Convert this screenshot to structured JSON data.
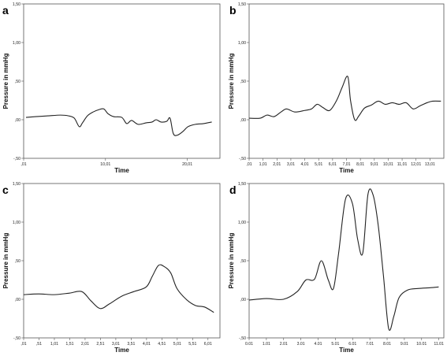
{
  "chart_data": [
    {
      "type": "line",
      "panel": "a",
      "xlabel": "Time",
      "ylabel": "Pressure in mmHg",
      "ylim": [
        -0.5,
        1.5
      ],
      "xlim": [
        0.01,
        24
      ],
      "grid": false,
      "x_ticks": [
        {
          "value": 0.01,
          "label": ",01"
        },
        {
          "value": 10.01,
          "label": "10,01"
        },
        {
          "value": 20.01,
          "label": "20,01"
        }
      ],
      "y_ticks": [
        {
          "value": -0.5,
          "label": "-,50"
        },
        {
          "value": 0,
          "label": ",00"
        },
        {
          "value": 0.5,
          "label": ",50"
        },
        {
          "value": 1.0,
          "label": "1,00"
        },
        {
          "value": 1.5,
          "label": "1,50"
        }
      ],
      "x": [
        0.3,
        1.5,
        3,
        4.5,
        5.5,
        6.2,
        6.8,
        7.2,
        7.8,
        8.5,
        9.2,
        9.8,
        10.3,
        11,
        12,
        12.6,
        13.2,
        14,
        15,
        15.7,
        16.2,
        16.8,
        17.5,
        17.9,
        18.3,
        18.8,
        19.5,
        20.1,
        21,
        22,
        23
      ],
      "y": [
        0.03,
        0.04,
        0.05,
        0.06,
        0.05,
        0.02,
        -0.09,
        -0.04,
        0.05,
        0.1,
        0.13,
        0.14,
        0.08,
        0.04,
        0.03,
        -0.05,
        -0.01,
        -0.06,
        -0.04,
        -0.03,
        0.0,
        -0.03,
        -0.02,
        0.02,
        -0.18,
        -0.2,
        -0.15,
        -0.09,
        -0.06,
        -0.05,
        -0.03
      ]
    },
    {
      "type": "line",
      "panel": "b",
      "xlabel": "Time",
      "ylabel": "Pressure in mmHg",
      "ylim": [
        -0.5,
        1.5
      ],
      "xlim": [
        0.01,
        14.01
      ],
      "grid": false,
      "x_ticks": [
        {
          "value": 0.01,
          "label": ",01"
        },
        {
          "value": 1.01,
          "label": "1,01"
        },
        {
          "value": 2.01,
          "label": "2,01"
        },
        {
          "value": 3.01,
          "label": "3,01"
        },
        {
          "value": 4.01,
          "label": "4,01"
        },
        {
          "value": 5.01,
          "label": "5,01"
        },
        {
          "value": 6.01,
          "label": "6,01"
        },
        {
          "value": 7.01,
          "label": "7,01"
        },
        {
          "value": 8.01,
          "label": "8,01"
        },
        {
          "value": 9.01,
          "label": "9,01"
        },
        {
          "value": 10.01,
          "label": "10,01"
        },
        {
          "value": 11.01,
          "label": "11,01"
        },
        {
          "value": 12.01,
          "label": "12,01"
        },
        {
          "value": 13.01,
          "label": "13,01"
        }
      ],
      "y_ticks": [
        {
          "value": -0.5,
          "label": "-,50"
        },
        {
          "value": 0,
          "label": ",00"
        },
        {
          "value": 0.5,
          "label": ",50"
        },
        {
          "value": 1.0,
          "label": "1,00"
        },
        {
          "value": 1.5,
          "label": "1,50"
        }
      ],
      "x": [
        0.01,
        0.8,
        1.3,
        1.8,
        2.3,
        2.7,
        3.3,
        4.0,
        4.5,
        4.9,
        5.3,
        5.8,
        6.3,
        6.7,
        7.1,
        7.3,
        7.6,
        7.9,
        8.3,
        8.8,
        9.3,
        9.8,
        10.3,
        10.8,
        11.3,
        11.8,
        12.3,
        12.8,
        13.2,
        13.8
      ],
      "y": [
        0.02,
        0.02,
        0.06,
        0.04,
        0.1,
        0.14,
        0.1,
        0.12,
        0.14,
        0.2,
        0.16,
        0.12,
        0.25,
        0.42,
        0.56,
        0.25,
        0.0,
        0.05,
        0.15,
        0.19,
        0.24,
        0.2,
        0.22,
        0.2,
        0.22,
        0.14,
        0.18,
        0.22,
        0.24,
        0.24
      ]
    },
    {
      "type": "line",
      "panel": "c",
      "xlabel": "Time",
      "ylabel": "Pressure in mmHg",
      "ylim": [
        -0.5,
        1.5
      ],
      "xlim": [
        0.01,
        6.4
      ],
      "grid": false,
      "x_ticks": [
        {
          "value": 0.01,
          "label": ",01"
        },
        {
          "value": 0.51,
          "label": ",51"
        },
        {
          "value": 1.01,
          "label": "1,01"
        },
        {
          "value": 1.51,
          "label": "1,51"
        },
        {
          "value": 2.01,
          "label": "2,01"
        },
        {
          "value": 2.51,
          "label": "2,51"
        },
        {
          "value": 3.01,
          "label": "3,01"
        },
        {
          "value": 3.51,
          "label": "3,51"
        },
        {
          "value": 4.01,
          "label": "4,01"
        },
        {
          "value": 4.51,
          "label": "4,51"
        },
        {
          "value": 5.01,
          "label": "5,01"
        },
        {
          "value": 5.51,
          "label": "5,51"
        },
        {
          "value": 6.01,
          "label": "6,01"
        }
      ],
      "y_ticks": [
        {
          "value": -0.5,
          "label": "-,50"
        },
        {
          "value": 0,
          "label": ",00"
        },
        {
          "value": 0.5,
          "label": ",50"
        },
        {
          "value": 1.0,
          "label": "1,00"
        },
        {
          "value": 1.5,
          "label": "1,50"
        }
      ],
      "x": [
        0.01,
        0.5,
        1.0,
        1.5,
        1.9,
        2.2,
        2.5,
        2.8,
        3.2,
        3.6,
        4.0,
        4.2,
        4.4,
        4.6,
        4.8,
        5.0,
        5.3,
        5.6,
        5.9,
        6.2
      ],
      "y": [
        0.06,
        0.07,
        0.06,
        0.08,
        0.1,
        -0.02,
        -0.12,
        -0.06,
        0.04,
        0.1,
        0.16,
        0.3,
        0.44,
        0.42,
        0.34,
        0.14,
        0.0,
        -0.08,
        -0.1,
        -0.17
      ]
    },
    {
      "type": "line",
      "panel": "d",
      "xlabel": "Time",
      "ylabel": "Pressure in mmHg",
      "ylim": [
        -0.5,
        1.5
      ],
      "xlim": [
        0.01,
        11.3
      ],
      "grid": false,
      "x_ticks": [
        {
          "value": 0.01,
          "label": "0.01"
        },
        {
          "value": 1.01,
          "label": "1.01"
        },
        {
          "value": 2.01,
          "label": "2.01"
        },
        {
          "value": 3.01,
          "label": "3.01"
        },
        {
          "value": 4.01,
          "label": "4.01"
        },
        {
          "value": 5.01,
          "label": "5.01"
        },
        {
          "value": 6.01,
          "label": "6.01"
        },
        {
          "value": 7.01,
          "label": "7.01"
        },
        {
          "value": 8.01,
          "label": "8.01"
        },
        {
          "value": 9.01,
          "label": "9.01"
        },
        {
          "value": 10.01,
          "label": "10.01"
        },
        {
          "value": 11.01,
          "label": "11.01"
        }
      ],
      "y_ticks": [
        {
          "value": -0.5,
          "label": "-,50"
        },
        {
          "value": 0,
          "label": ",00"
        },
        {
          "value": 0.5,
          "label": ",50"
        },
        {
          "value": 1.0,
          "label": "1,00"
        },
        {
          "value": 1.5,
          "label": "1,50"
        }
      ],
      "x": [
        0.01,
        1.0,
        2.0,
        2.8,
        3.3,
        3.8,
        4.2,
        4.6,
        4.9,
        5.2,
        5.6,
        6.0,
        6.3,
        6.6,
        6.9,
        7.2,
        7.5,
        7.8,
        8.1,
        8.4,
        8.7,
        9.2,
        9.8,
        10.5,
        11.0
      ],
      "y": [
        -0.01,
        0.01,
        0.0,
        0.1,
        0.25,
        0.26,
        0.5,
        0.25,
        0.14,
        0.6,
        1.3,
        1.24,
        0.78,
        0.6,
        1.36,
        1.35,
        0.95,
        0.3,
        -0.38,
        -0.22,
        0.02,
        0.12,
        0.14,
        0.15,
        0.16
      ]
    }
  ]
}
